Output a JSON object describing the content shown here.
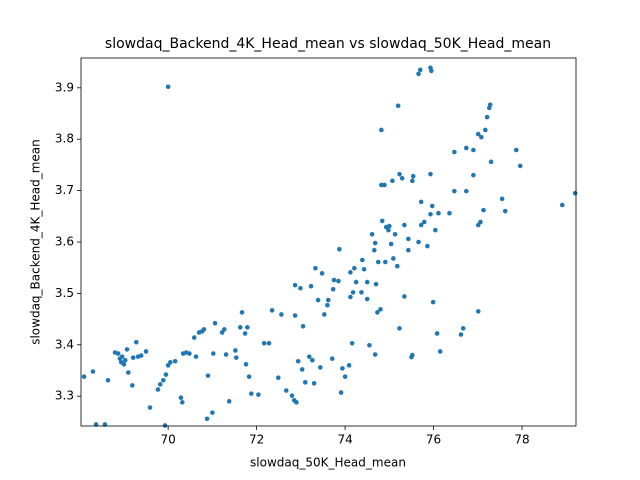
{
  "chart_data": {
    "type": "scatter",
    "title": "slowdaq_Backend_4K_Head_mean vs slowdaq_50K_Head_mean",
    "x_label": "slowdaq_50K_Head_mean",
    "y_label": "slowdaq_Backend_4K_Head_mean",
    "color": "#1f77b4",
    "xlim": [
      68.03,
      79.22
    ],
    "ylim": [
      3.242,
      3.958
    ],
    "xticks": [
      70,
      72,
      74,
      76,
      78
    ],
    "yticks": [
      3.3,
      3.4,
      3.5,
      3.6,
      3.7,
      3.8,
      3.9
    ],
    "x": [
      68.1,
      68.3,
      68.37,
      68.57,
      68.64,
      68.8,
      68.87,
      68.91,
      68.94,
      68.96,
      69.0,
      69.03,
      69.07,
      69.1,
      69.19,
      69.21,
      69.28,
      69.32,
      69.39,
      69.5,
      69.59,
      69.77,
      69.82,
      69.89,
      69.93,
      69.95,
      70.0,
      70.05,
      70.16,
      70.29,
      70.32,
      70.34,
      70.41,
      70.48,
      70.59,
      70.63,
      70.7,
      70.77,
      70.81,
      70.9,
      70.88,
      71.0,
      71.02,
      71.06,
      71.22,
      71.27,
      71.31,
      71.38,
      71.52,
      71.54,
      71.63,
      71.67,
      71.74,
      71.76,
      71.79,
      71.83,
      71.88,
      72.04,
      72.17,
      72.28,
      72.35,
      72.49,
      72.56,
      72.67,
      72.8,
      72.85,
      72.87,
      72.87,
      72.9,
      72.94,
      72.99,
      73.03,
      73.05,
      73.1,
      73.19,
      73.23,
      73.26,
      73.3,
      73.33,
      73.39,
      73.44,
      73.48,
      73.53,
      73.6,
      73.62,
      73.71,
      73.73,
      73.75,
      73.85,
      73.87,
      73.91,
      73.94,
      74.0,
      74.09,
      74.12,
      74.12,
      74.16,
      74.18,
      74.21,
      74.25,
      74.37,
      74.39,
      74.43,
      74.5,
      74.5,
      74.55,
      74.61,
      74.66,
      74.68,
      74.7,
      74.73,
      74.75,
      74.8,
      74.82,
      74.84,
      74.89,
      74.91,
      74.93,
      74.98,
      75.0,
      75.04,
      75.07,
      75.09,
      75.13,
      75.18,
      75.23,
      75.29,
      75.34,
      75.34,
      75.43,
      75.43,
      75.52,
      75.54,
      75.66,
      75.72,
      75.79,
      75.86,
      75.93,
      76.04,
      76.11,
      76.36,
      76.47,
      76.74,
      76.9,
      76.74,
      76.47,
      77.01,
      77.08,
      77.17,
      77.21,
      77.26,
      77.28,
      76.9,
      77.06,
      77.13,
      77.01,
      77.3,
      77.55,
      77.62,
      77.87,
      77.96,
      78.91,
      79.2,
      77.01,
      76.67,
      76.62,
      76.15,
      76.08,
      75.99,
      75.52,
      75.5,
      75.23,
      74.68,
      75.7,
      75.93,
      75.95,
      75.66,
      75.2,
      74.82,
      70.0,
      75.72,
      75.93,
      75.97
    ],
    "values": [
      3.338,
      3.348,
      3.245,
      3.245,
      3.331,
      3.385,
      3.383,
      3.373,
      3.366,
      3.377,
      3.362,
      3.37,
      3.391,
      3.346,
      3.321,
      3.375,
      3.405,
      3.377,
      3.379,
      3.387,
      3.278,
      3.313,
      3.323,
      3.331,
      3.243,
      3.342,
      3.36,
      3.366,
      3.368,
      3.297,
      3.288,
      3.383,
      3.385,
      3.383,
      3.414,
      3.377,
      3.424,
      3.426,
      3.43,
      3.34,
      3.256,
      3.268,
      3.383,
      3.442,
      3.424,
      3.43,
      3.381,
      3.29,
      3.389,
      3.375,
      3.434,
      3.463,
      3.422,
      3.362,
      3.434,
      3.338,
      3.305,
      3.303,
      3.403,
      3.403,
      3.467,
      3.336,
      3.459,
      3.311,
      3.301,
      3.292,
      3.457,
      3.516,
      3.288,
      3.368,
      3.51,
      3.352,
      3.436,
      3.327,
      3.377,
      3.514,
      3.37,
      3.325,
      3.549,
      3.487,
      3.356,
      3.539,
      3.459,
      3.477,
      3.487,
      3.373,
      3.508,
      3.526,
      3.524,
      3.586,
      3.307,
      3.354,
      3.338,
      3.36,
      3.493,
      3.541,
      3.403,
      3.502,
      3.549,
      3.522,
      3.502,
      3.565,
      3.547,
      3.522,
      3.489,
      3.399,
      3.615,
      3.584,
      3.598,
      3.518,
      3.463,
      3.561,
      3.469,
      3.711,
      3.641,
      3.711,
      3.561,
      3.629,
      3.623,
      3.631,
      3.596,
      3.719,
      3.568,
      3.615,
      3.553,
      3.732,
      3.724,
      3.494,
      3.633,
      3.584,
      3.606,
      3.719,
      3.728,
      3.6,
      3.633,
      3.639,
      3.592,
      3.732,
      3.623,
      3.656,
      3.656,
      3.699,
      3.699,
      3.73,
      3.783,
      3.775,
      3.81,
      3.804,
      3.818,
      3.843,
      3.861,
      3.867,
      3.779,
      3.639,
      3.662,
      3.633,
      3.756,
      3.684,
      3.66,
      3.779,
      3.748,
      3.672,
      3.695,
      3.465,
      3.432,
      3.42,
      3.387,
      3.422,
      3.483,
      3.38,
      3.376,
      3.432,
      3.381,
      3.935,
      3.939,
      3.933,
      3.927,
      3.865,
      3.818,
      3.902,
      3.678,
      3.654,
      3.67
    ]
  }
}
